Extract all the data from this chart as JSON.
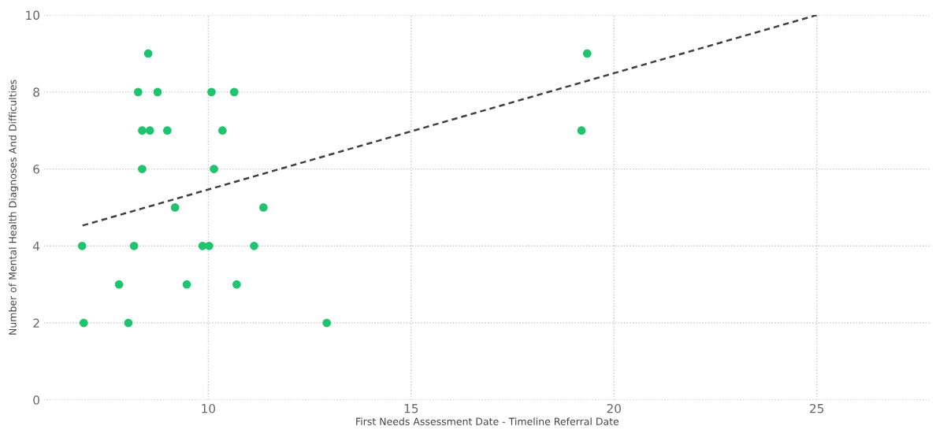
{
  "chart_data": {
    "type": "scatter",
    "xlabel": "First Needs Assessment Date - Timeline Referral Date",
    "ylabel": "Number of Mental Health Diagnoses And Difficulties",
    "xlim": [
      5.95,
      27.8
    ],
    "ylim": [
      0,
      10
    ],
    "xticks": [
      10,
      15,
      20,
      25
    ],
    "yticks": [
      0,
      2,
      4,
      6,
      8,
      10
    ],
    "grid": true,
    "series": [
      {
        "marker": "circle",
        "color": "#1ec46e",
        "x": [
          6.89,
          6.93,
          7.8,
          8.03,
          8.17,
          8.27,
          8.37,
          8.37,
          8.52,
          8.56,
          8.75,
          8.99,
          9.18,
          9.47,
          9.86,
          10.02,
          10.08,
          10.14,
          10.35,
          10.64,
          10.7,
          11.13,
          11.36,
          12.92,
          19.2,
          19.34
        ],
        "values": [
          4,
          2,
          3,
          2,
          4,
          8,
          7,
          6,
          9,
          7,
          8,
          7,
          5,
          3,
          4,
          4,
          8,
          6,
          7,
          8,
          3,
          4,
          5,
          2,
          7,
          9
        ]
      },
      {
        "type": "line",
        "color": "#404040",
        "line_style": "dashed",
        "x": [
          6.9,
          25
        ],
        "values": [
          4.53,
          10
        ]
      }
    ]
  }
}
